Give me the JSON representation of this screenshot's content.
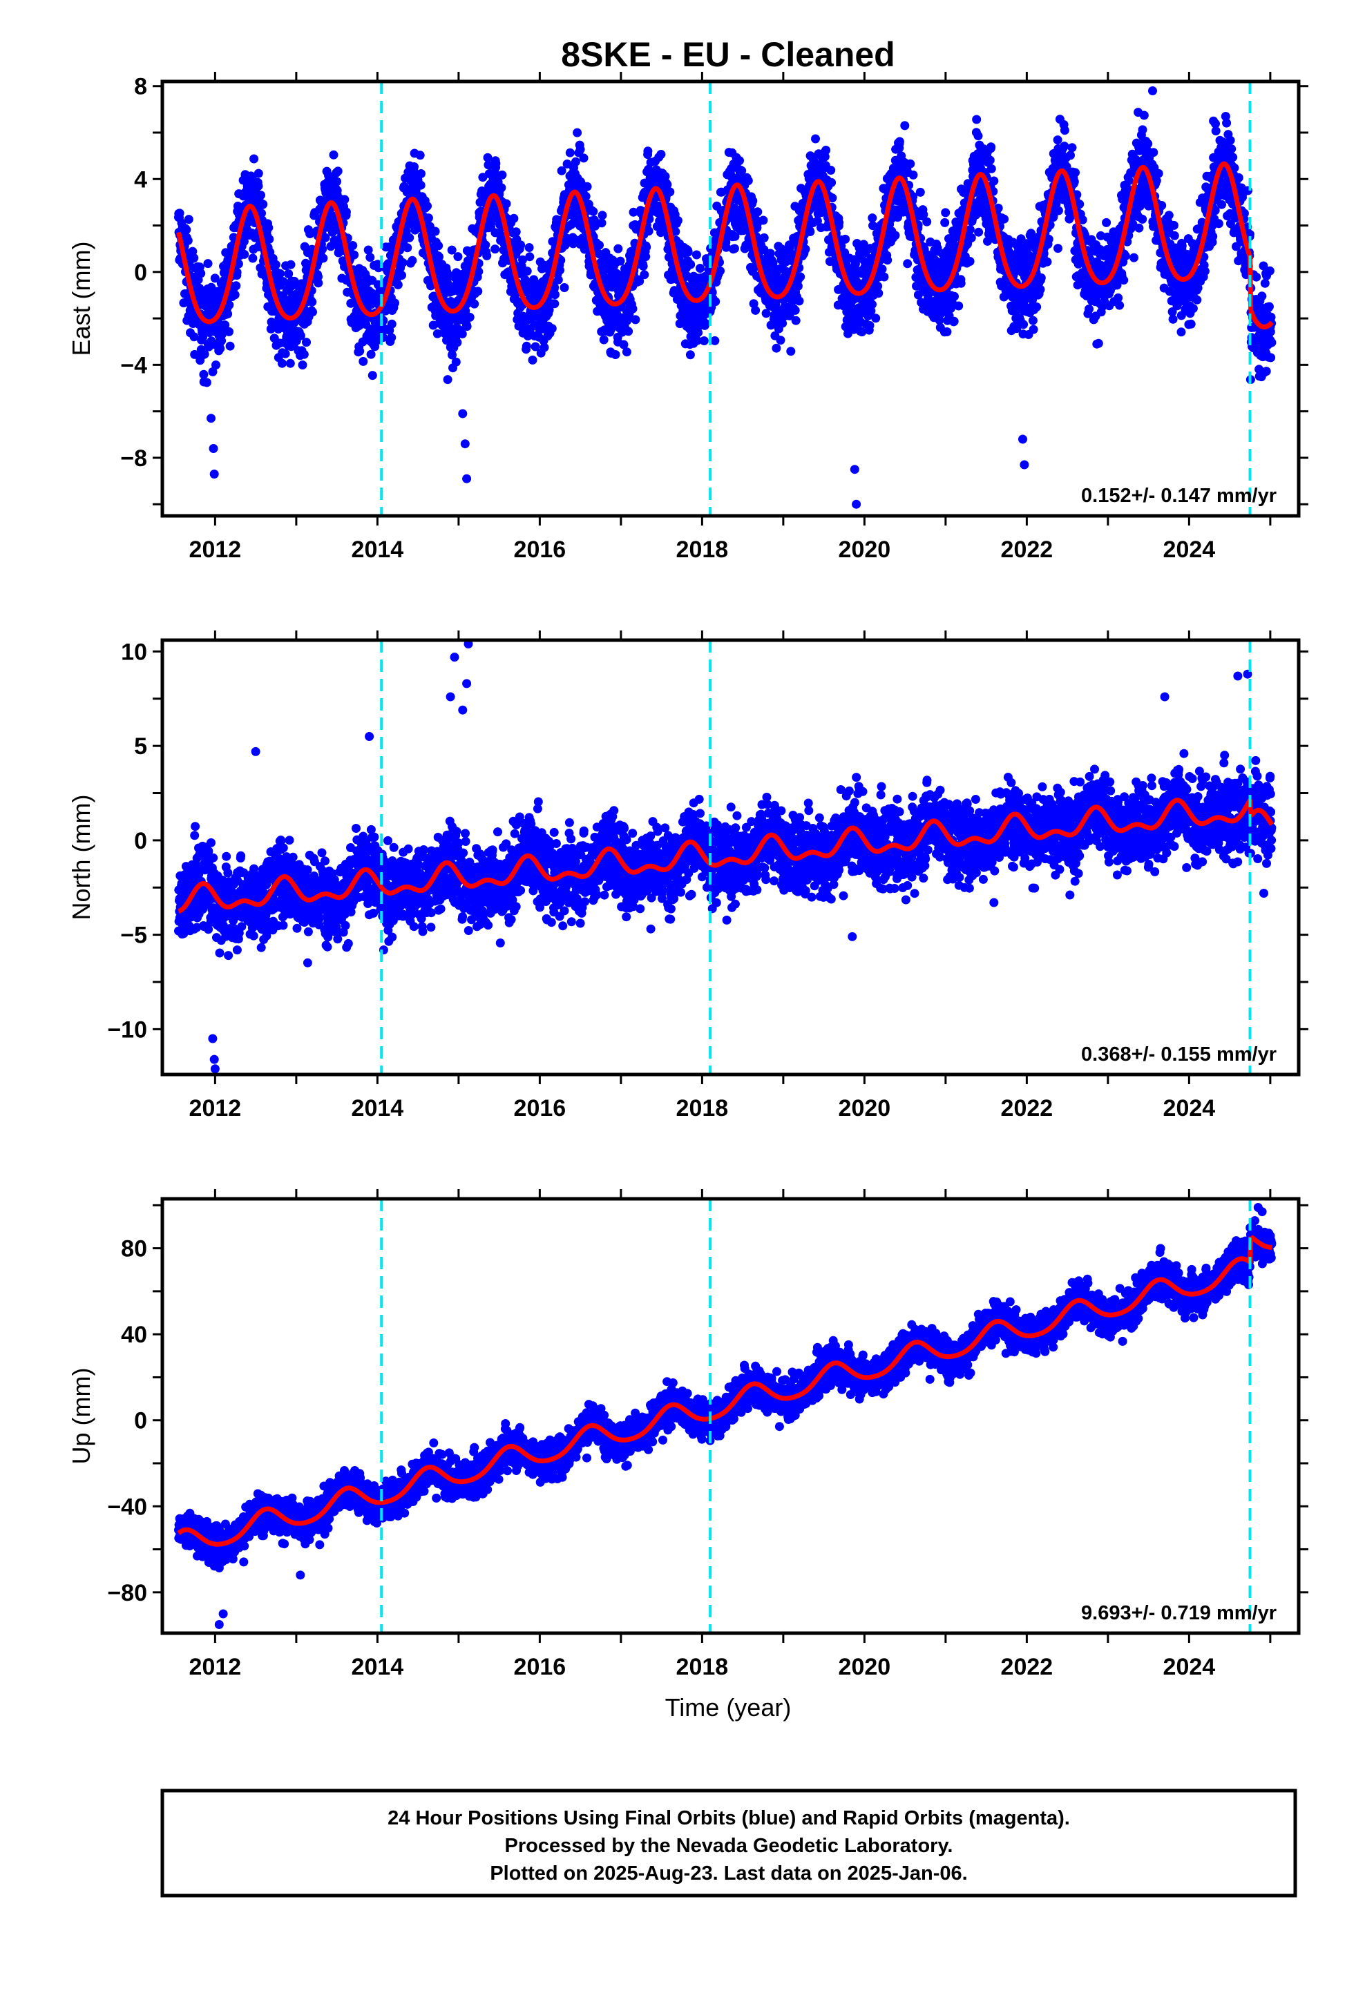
{
  "title": "8SKE  - EU - Cleaned",
  "xlabel": "Time (year)",
  "footer_lines": [
    "24 Hour Positions Using Final Orbits (blue) and Rapid Orbits (magenta).",
    "Processed by the Nevada Geodetic Laboratory.",
    "Plotted on 2025-Aug-23. Last data on 2025-Jan-06."
  ],
  "colors": {
    "final_orbit_points": "#0000ff",
    "model_fit": "#ff0000",
    "equipment_change_lines": "#00e5ee",
    "axes": "#000000"
  },
  "chart_data": [
    {
      "type": "scatter",
      "ylabel": "East (mm)",
      "xlim": [
        2011.35,
        2025.35
      ],
      "ylim": [
        -10.5,
        8.2
      ],
      "xticks": [
        2012,
        2014,
        2016,
        2018,
        2020,
        2022,
        2024
      ],
      "yticks": [
        -8,
        -4,
        0,
        4,
        8
      ],
      "rate_label": "0.152+/- 0.147 mm/yr",
      "equipment_changes": [
        2014.05,
        2018.1,
        2024.75
      ],
      "data_range": [
        2011.55,
        2025.02
      ],
      "model": {
        "intercept": -0.1,
        "rate": 0.152,
        "annual_amp": 2.45,
        "annual_peak": 0.43,
        "semiannual_amp": 0.35,
        "jump_at": 2024.75,
        "jump": -2.2
      },
      "scatter_sd": 1.0,
      "outliers": [
        [
          2011.95,
          -6.3
        ],
        [
          2011.98,
          -7.6
        ],
        [
          2011.99,
          -8.7
        ],
        [
          2015.05,
          -6.1
        ],
        [
          2015.08,
          -7.4
        ],
        [
          2015.1,
          -8.9
        ],
        [
          2019.88,
          -8.5
        ],
        [
          2019.9,
          -10.0
        ],
        [
          2021.95,
          -7.2
        ],
        [
          2021.97,
          -8.3
        ],
        [
          2023.55,
          7.8
        ],
        [
          2024.3,
          6.5
        ],
        [
          2024.45,
          6.7
        ]
      ]
    },
    {
      "type": "scatter",
      "ylabel": "North (mm)",
      "xlim": [
        2011.35,
        2025.35
      ],
      "ylim": [
        -12.4,
        10.6
      ],
      "xticks": [
        2012,
        2014,
        2016,
        2018,
        2020,
        2022,
        2024
      ],
      "yticks": [
        -10,
        -5,
        0,
        5,
        10
      ],
      "rate_label": "0.368+/- 0.155 mm/yr",
      "equipment_changes": [
        2014.05,
        2018.1,
        2024.75
      ],
      "data_range": [
        2011.55,
        2025.02
      ],
      "model": {
        "intercept": -3.3,
        "rate": 0.368,
        "annual_amp": 0.55,
        "annual_peak": 0.85,
        "semiannual_amp": 0.35,
        "jump_at": 2024.75,
        "jump": -0.9
      },
      "scatter_sd": 1.05,
      "outliers": [
        [
          2011.97,
          -10.5
        ],
        [
          2011.99,
          -11.6
        ],
        [
          2012.0,
          -12.1
        ],
        [
          2013.9,
          5.5
        ],
        [
          2012.5,
          4.7
        ],
        [
          2014.9,
          7.6
        ],
        [
          2014.95,
          9.7
        ],
        [
          2015.05,
          6.9
        ],
        [
          2015.1,
          8.3
        ],
        [
          2015.12,
          10.4
        ],
        [
          2023.7,
          7.6
        ],
        [
          2024.6,
          8.7
        ],
        [
          2024.72,
          8.8
        ],
        [
          2019.85,
          -5.1
        ],
        [
          2024.92,
          -2.8
        ]
      ]
    },
    {
      "type": "scatter",
      "ylabel": "Up (mm)",
      "xlim": [
        2011.35,
        2025.35
      ],
      "ylim": [
        -99,
        103
      ],
      "xticks": [
        2012,
        2014,
        2016,
        2018,
        2020,
        2022,
        2024
      ],
      "yticks": [
        -80,
        -40,
        0,
        40,
        80
      ],
      "rate_label": "9.693+/- 0.719 mm/yr",
      "equipment_changes": [
        2014.05,
        2018.1,
        2024.75
      ],
      "data_range": [
        2011.55,
        2025.02
      ],
      "model": {
        "intercept": -58.0,
        "rate": 9.693,
        "annual_amp": 5.5,
        "annual_peak": 0.62,
        "semiannual_amp": 0.8,
        "jump_at": 2024.75,
        "jump": 12.0
      },
      "scatter_sd": 4.5,
      "outliers": [
        [
          2012.05,
          -95
        ],
        [
          2012.1,
          -90
        ],
        [
          2013.05,
          -72
        ],
        [
          2024.85,
          99
        ],
        [
          2024.9,
          97
        ]
      ]
    }
  ]
}
